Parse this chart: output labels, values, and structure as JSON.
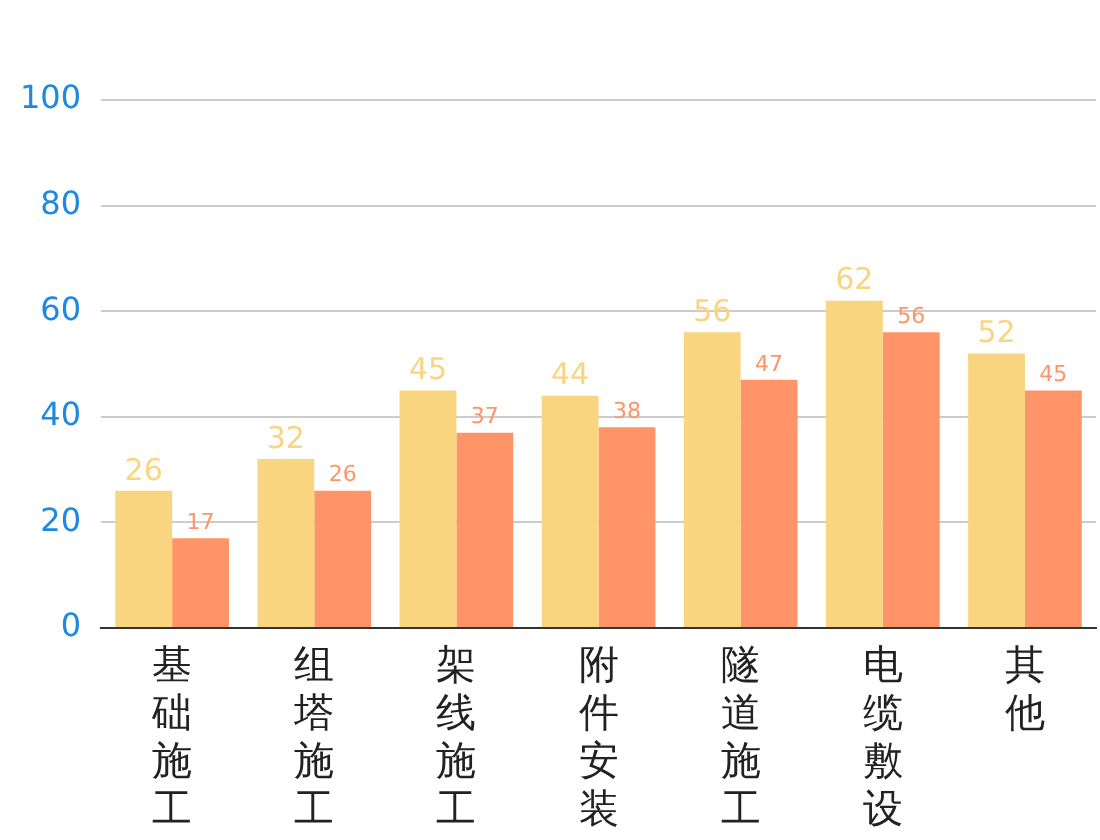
{
  "chart_data": {
    "type": "bar",
    "categories": [
      "基础施工",
      "组塔施工",
      "架线施工",
      "附件安装",
      "隧道施工",
      "电缆敷设",
      "其他"
    ],
    "series": [
      {
        "color": "#f9d580",
        "values": [
          26,
          32,
          45,
          44,
          56,
          62,
          52
        ]
      },
      {
        "color": "#fe9468",
        "values": [
          17,
          26,
          37,
          38,
          47,
          56,
          45
        ]
      }
    ],
    "ylim": [
      0,
      100
    ],
    "yticks": [
      0,
      20,
      40,
      60,
      80,
      100
    ],
    "grid": "y",
    "data_labels": true,
    "legend": false
  }
}
